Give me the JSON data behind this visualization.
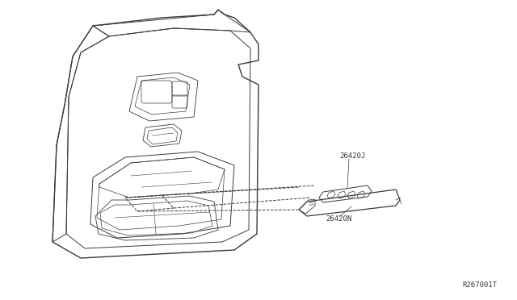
{
  "bg_color": "#ffffff",
  "line_color": "#3a3a3a",
  "ref_code": "R267001T",
  "part_labels": [
    "26420J",
    "26420N"
  ],
  "font_size_labels": 6.5,
  "font_size_ref": 6.5
}
